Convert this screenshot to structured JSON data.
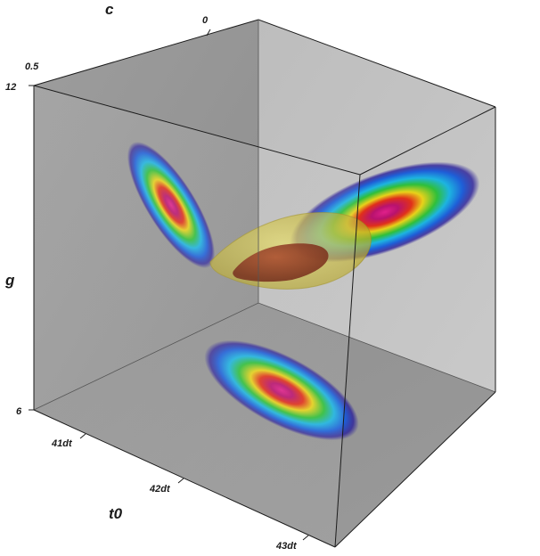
{
  "chart_data": {
    "type": "3d-volume",
    "title": "",
    "axes": {
      "x": {
        "label": "t0",
        "ticks": [
          "41dt",
          "42dt",
          "43dt"
        ]
      },
      "y": {
        "label": "c",
        "ticks": [
          "0.5",
          "0"
        ]
      },
      "z": {
        "label": "g",
        "ticks": [
          "12",
          "6"
        ]
      }
    },
    "projections": [
      {
        "name": "",
        "plane": "t0-g"
      },
      {
        "name": "",
        "plane": "c-g"
      },
      {
        "name": "",
        "plane": "t0-c"
      }
    ],
    "isosurfaces": [
      {
        "color": "#d6c93a",
        "opacity": 0.55
      },
      {
        "color": "#8a2a10",
        "opacity": 0.85
      }
    ],
    "colormap": [
      "#2a1f9a",
      "#1e5fd8",
      "#1db4e0",
      "#2fbf3a",
      "#e8d21a",
      "#e0301a",
      "#b8126e",
      "#e0208a"
    ],
    "grid": false
  }
}
